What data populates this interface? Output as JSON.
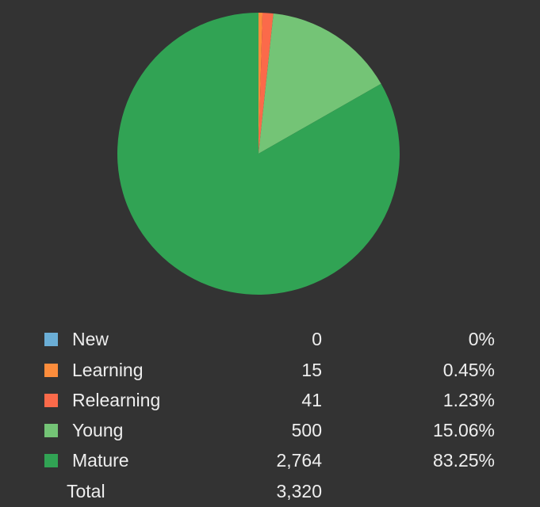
{
  "chart_data": {
    "type": "pie",
    "categories": [
      "New",
      "Learning",
      "Relearning",
      "Young",
      "Mature"
    ],
    "values": [
      0,
      15,
      41,
      500,
      2764
    ],
    "percentages": [
      "0%",
      "0.45%",
      "1.23%",
      "15.06%",
      "83.25%"
    ],
    "counts_display": [
      "0",
      "15",
      "41",
      "500",
      "2,764"
    ],
    "colors": [
      "#6baed6",
      "#fd8d3c",
      "#fb6a4a",
      "#74c476",
      "#31a354"
    ],
    "total_label": "Total",
    "total_display": "3,320",
    "total": 3320,
    "legend_position": "bottom"
  }
}
